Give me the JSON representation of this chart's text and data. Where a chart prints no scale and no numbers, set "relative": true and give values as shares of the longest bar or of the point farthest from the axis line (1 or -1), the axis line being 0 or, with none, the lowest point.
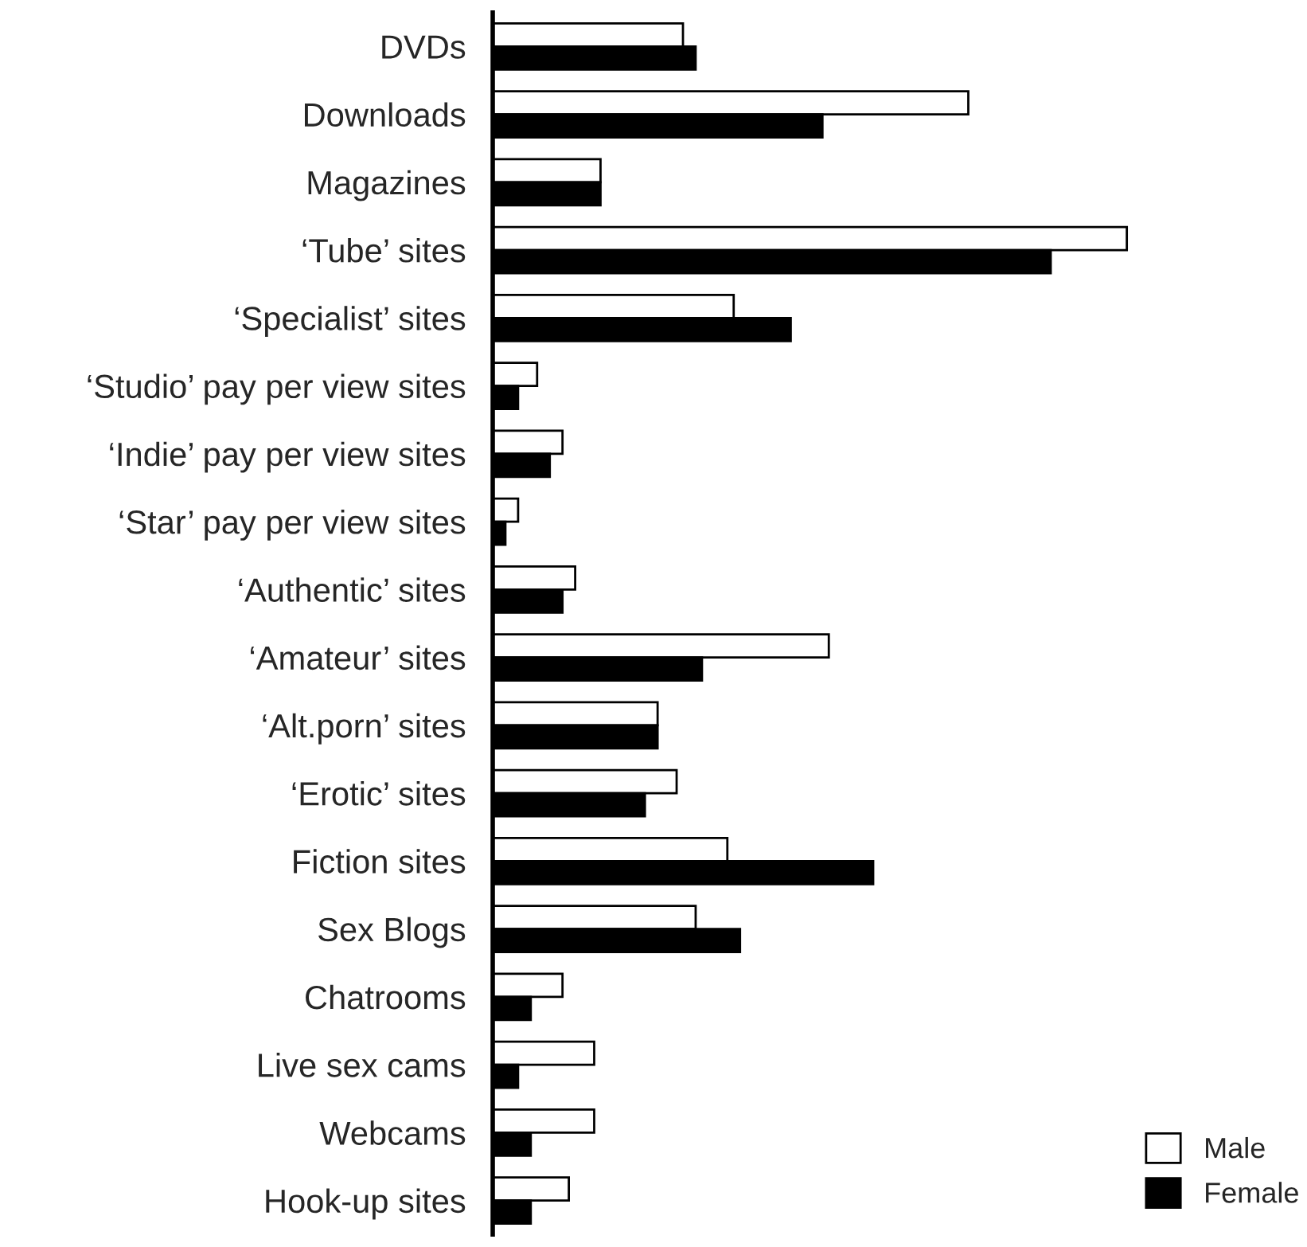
{
  "chart_data": {
    "type": "bar",
    "orientation": "horizontal",
    "relative": true,
    "legend": "bottom right",
    "categories": [
      "DVDs",
      "Downloads",
      "Magazines",
      "‘Tube’ sites",
      "‘Specialist’ sites",
      "‘Studio’ pay per view sites",
      "‘Indie’ pay per view sites",
      "‘Star’ pay per view sites",
      "‘Authentic’ sites",
      "‘Amateur’ sites",
      "‘Alt.porn’ sites",
      "‘Erotic’ sites",
      "Fiction sites",
      "Sex Blogs",
      "Chatrooms",
      "Live sex cams",
      "Webcams",
      "Hook-up sites"
    ],
    "series": [
      {
        "name": "Male",
        "color": "#ffffff",
        "values": [
          0.3,
          0.75,
          0.17,
          1,
          0.38,
          0.07,
          0.11,
          0.04,
          0.13,
          0.53,
          0.26,
          0.29,
          0.37,
          0.32,
          0.11,
          0.16,
          0.16,
          0.12
        ]
      },
      {
        "name": "Female",
        "color": "#000000",
        "values": [
          0.32,
          0.52,
          0.17,
          0.88,
          0.47,
          0.04,
          0.09,
          0.02,
          0.11,
          0.33,
          0.26,
          0.24,
          0.6,
          0.39,
          0.06,
          0.04,
          0.06,
          0.06
        ]
      }
    ]
  }
}
